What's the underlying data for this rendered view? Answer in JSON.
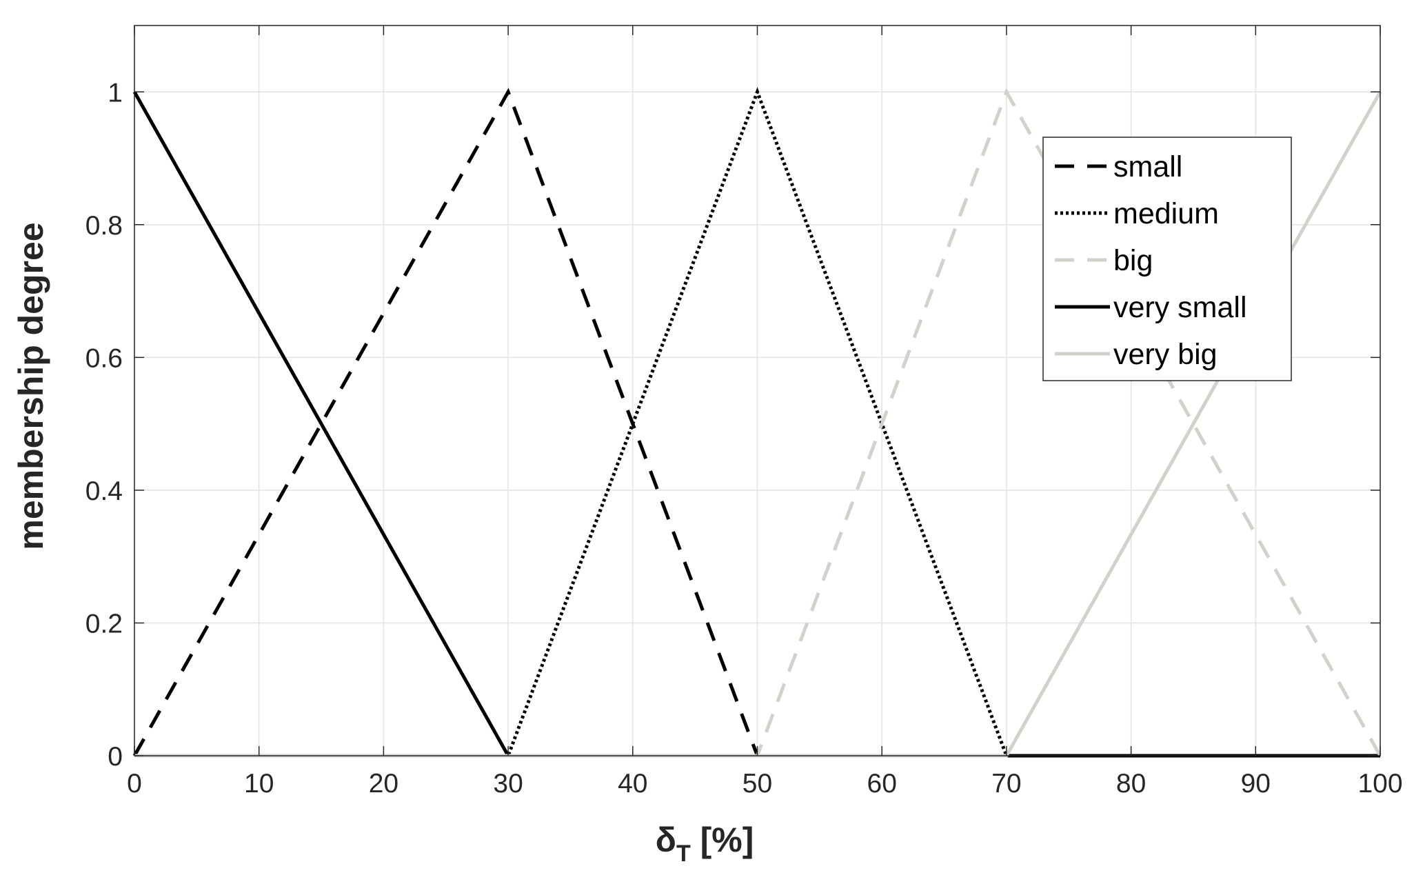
{
  "chart_data": {
    "type": "line",
    "xlabel": "δT [%]",
    "xlabel_main": "δ",
    "xlabel_sub": "T",
    "xlabel_rest": " [%]",
    "ylabel": "membership degree",
    "xlim": [
      0,
      100
    ],
    "ylim": [
      0,
      1.1
    ],
    "xticks": [
      0,
      10,
      20,
      30,
      40,
      50,
      60,
      70,
      80,
      90,
      100
    ],
    "yticks": [
      0,
      0.2,
      0.4,
      0.6,
      0.8,
      1
    ],
    "xtick_labels": [
      "0",
      "10",
      "20",
      "30",
      "40",
      "50",
      "60",
      "70",
      "80",
      "90",
      "100"
    ],
    "ytick_labels": [
      "0",
      "0.2",
      "0.4",
      "0.6",
      "0.8",
      "1"
    ],
    "grid": true,
    "legend_position": "top-right",
    "series": [
      {
        "name": "small",
        "style": "dashed",
        "color": "#000000",
        "x": [
          0,
          30,
          50,
          100
        ],
        "y": [
          0,
          1,
          0,
          0
        ]
      },
      {
        "name": "medium",
        "style": "dotted",
        "color": "#000000",
        "x": [
          0,
          30,
          50,
          70,
          100
        ],
        "y": [
          0,
          0,
          1,
          0,
          0
        ]
      },
      {
        "name": "big",
        "style": "dashed",
        "color": "#d4d1cb",
        "x": [
          0,
          50,
          70,
          100
        ],
        "y": [
          0,
          0,
          1,
          0
        ]
      },
      {
        "name": "very small",
        "style": "solid",
        "color": "#000000",
        "x": [
          0,
          30,
          100
        ],
        "y": [
          1,
          0,
          0
        ]
      },
      {
        "name": "very big",
        "style": "solid",
        "color": "#d4d1cb",
        "x": [
          0,
          70,
          100
        ],
        "y": [
          0,
          0,
          1
        ]
      }
    ]
  }
}
